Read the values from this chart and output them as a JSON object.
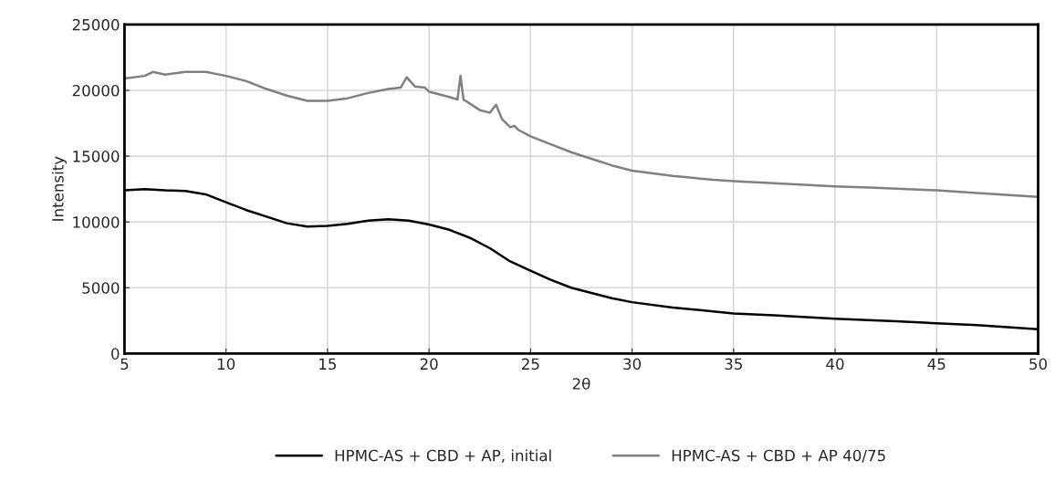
{
  "chart_data": {
    "type": "line",
    "xlabel": "2θ",
    "ylabel": "Intensity",
    "xlim": [
      5,
      50
    ],
    "xticks": [
      5,
      10,
      15,
      20,
      25,
      30,
      35,
      40,
      45,
      50
    ],
    "ylim": [
      0,
      25000
    ],
    "yticks": [
      0,
      5000,
      10000,
      15000,
      20000,
      25000
    ],
    "grid": true,
    "legend": "bottom",
    "marker": "none",
    "line_style": "solid",
    "series": [
      {
        "name": "HPMC-AS + CBD + AP, initial",
        "color": "#000000",
        "x": [
          5,
          6,
          7,
          8,
          9,
          10,
          11,
          12,
          13,
          14,
          15,
          16,
          17,
          18,
          19,
          20,
          21,
          22,
          23,
          24,
          25,
          26,
          27,
          28,
          29,
          30,
          32,
          34,
          35,
          37,
          40,
          43,
          45,
          47,
          50
        ],
        "values": [
          12400,
          12500,
          12400,
          12350,
          12100,
          11500,
          10900,
          10400,
          9900,
          9650,
          9700,
          9850,
          10100,
          10200,
          10100,
          9800,
          9400,
          8800,
          8000,
          7000,
          6300,
          5600,
          5000,
          4600,
          4200,
          3900,
          3500,
          3200,
          3050,
          2900,
          2650,
          2450,
          2300,
          2150,
          1850
        ]
      },
      {
        "name": "HPMC-AS + CBD + AP 40/75",
        "color": "#808080",
        "x": [
          5,
          6,
          6.4,
          7,
          8,
          9,
          10,
          11,
          12,
          13,
          14,
          15,
          16,
          17,
          18,
          18.6,
          18.9,
          19.3,
          19.8,
          20,
          21,
          21.4,
          21.55,
          21.7,
          22.5,
          23,
          23.3,
          23.6,
          24,
          24.2,
          24.4,
          25,
          26,
          27,
          28,
          29,
          30,
          32,
          34,
          35,
          37,
          40,
          42,
          45,
          47,
          50
        ],
        "values": [
          20900,
          21100,
          21400,
          21200,
          21400,
          21400,
          21100,
          20700,
          20100,
          19600,
          19200,
          19200,
          19400,
          19800,
          20100,
          20200,
          21000,
          20300,
          20200,
          19900,
          19500,
          19300,
          21100,
          19300,
          18500,
          18300,
          18900,
          17800,
          17200,
          17300,
          17000,
          16500,
          15900,
          15300,
          14800,
          14300,
          13900,
          13500,
          13200,
          13100,
          12950,
          12700,
          12600,
          12400,
          12200,
          11900
        ]
      }
    ]
  }
}
